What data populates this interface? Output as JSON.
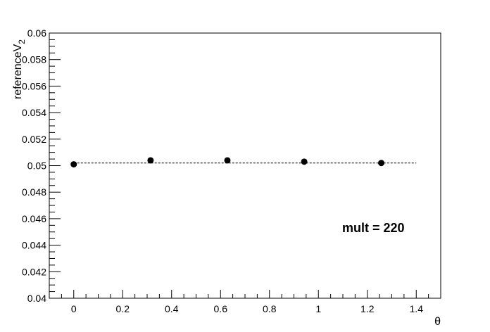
{
  "chart_data": {
    "type": "scatter",
    "xlabel": "θ",
    "ylabel": "referenceV",
    "ylabel_subscript": "2",
    "xlim": [
      -0.1,
      1.5
    ],
    "ylim": [
      0.04,
      0.06
    ],
    "x_ticks": [
      0,
      0.2,
      0.4,
      0.6,
      0.8,
      1,
      1.2,
      1.4
    ],
    "x_tick_labels": [
      "0",
      "0.2",
      "0.4",
      "0.6",
      "0.8",
      "1",
      "1.2",
      "1.4"
    ],
    "y_ticks": [
      0.04,
      0.042,
      0.044,
      0.046,
      0.048,
      0.05,
      0.052,
      0.054,
      0.056,
      0.058,
      0.06
    ],
    "y_tick_labels": [
      "0.04",
      "0.042",
      "0.044",
      "0.046",
      "0.048",
      "0.05",
      "0.052",
      "0.054",
      "0.056",
      "0.058",
      "0.06"
    ],
    "points": [
      {
        "x": 0,
        "y": 0.0501
      },
      {
        "x": 0.314,
        "y": 0.0504
      },
      {
        "x": 0.628,
        "y": 0.0504
      },
      {
        "x": 0.942,
        "y": 0.0503
      },
      {
        "x": 1.257,
        "y": 0.0502
      }
    ],
    "reference_line": {
      "y": 0.0502,
      "x_from": 0,
      "x_to": 1.4,
      "style": "dashed"
    },
    "annotation": "mult = 220",
    "grid": false,
    "legend": "none"
  }
}
